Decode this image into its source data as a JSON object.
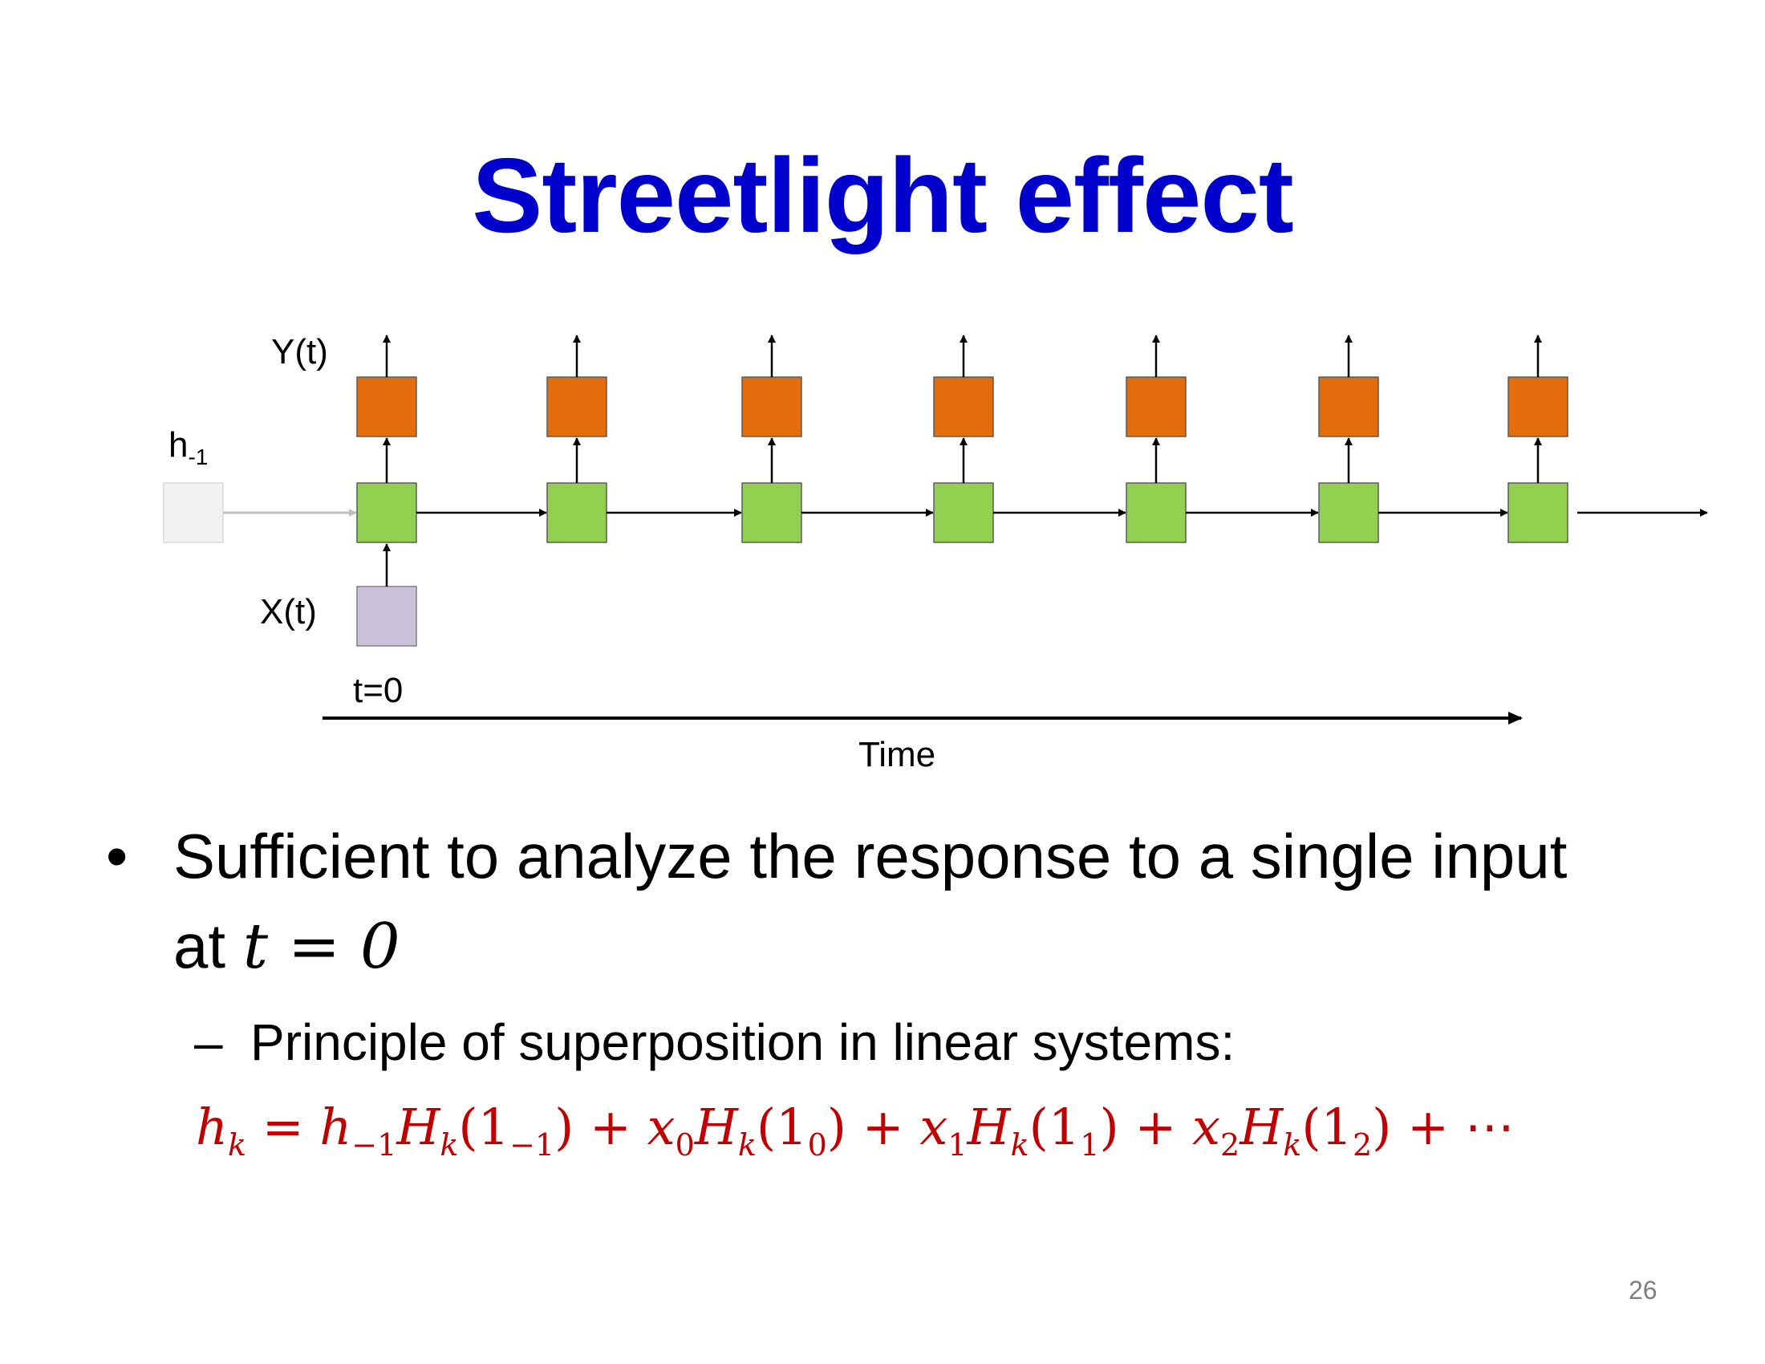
{
  "slide": {
    "title": "Streetlight effect",
    "page_number": "26"
  },
  "diagram": {
    "output_label": "Y(t)",
    "input_label": "X(t)",
    "initial_state_label": "h",
    "initial_state_subscript": "-1",
    "time_start_label": "t=0",
    "time_axis_label": "Time",
    "colors": {
      "output_box": "#e46c0a",
      "hidden_box": "#92d050",
      "input_box": "#ccc1da",
      "initial_box": "#f2f2f2"
    }
  },
  "bullets": {
    "main_line1": "Sufficient to analyze the response to a single input",
    "main_line2_text": "at ",
    "main_line2_math": "t = 0",
    "sub_dash": "–",
    "sub_text": "Principle of superposition in linear systems:",
    "equation": "h_k = h_{-1}H_k(1_{-1}) + x_0 H_k(1_0) + x_1 H_k(1_1) + x_2 H_k(1_2) + ⋯"
  }
}
